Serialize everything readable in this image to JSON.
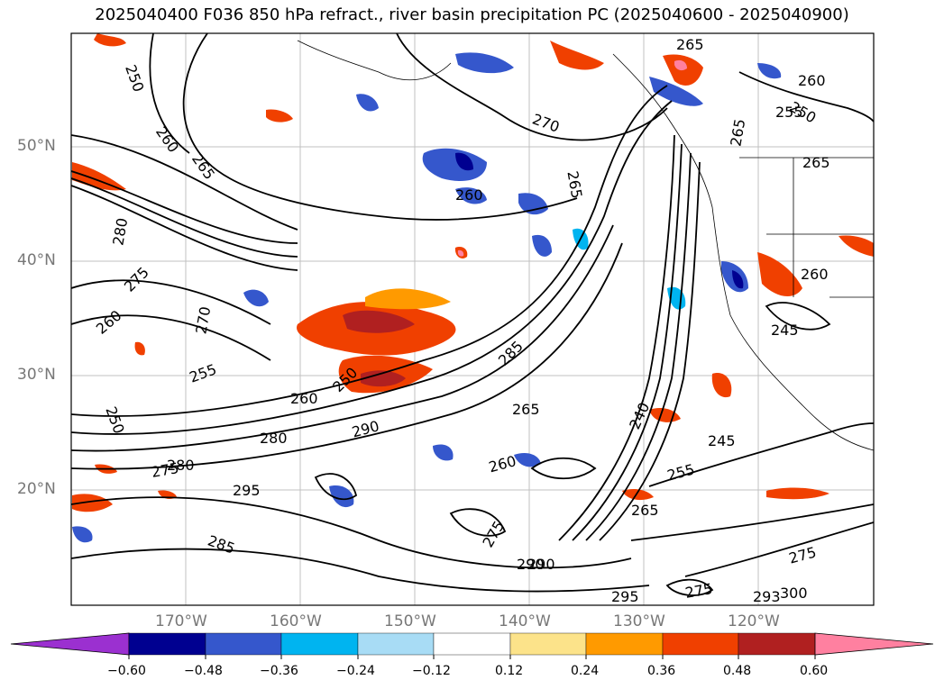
{
  "title": "2025040400 F036 850 hPa refract., river basin precipitation PC (2025040600 - 2025040900)",
  "map": {
    "lat_labels": [
      "50°N",
      "40°N",
      "30°N",
      "20°N"
    ],
    "lon_labels": [
      "170°W",
      "160°W",
      "150°W",
      "140°W",
      "130°W",
      "120°W"
    ],
    "extent": {
      "lon_min": -179.5,
      "lon_max": -109.5,
      "lat_min": 10,
      "lat_max": 60
    }
  },
  "contour_labels": [
    "250",
    "260",
    "265",
    "270",
    "280",
    "275",
    "260",
    "270",
    "255",
    "250",
    "260",
    "250",
    "280",
    "290",
    "295",
    "285",
    "265",
    "260",
    "275",
    "280",
    "275",
    "285",
    "290",
    "240",
    "265",
    "260",
    "245",
    "255",
    "265",
    "275",
    "290",
    "295",
    "275",
    "265",
    "260",
    "265",
    "250",
    "265",
    "245",
    "300",
    "293",
    "260",
    "255"
  ],
  "colorbar": {
    "ticks": [
      "−0.60",
      "−0.48",
      "−0.36",
      "−0.24",
      "−0.12",
      "0.12",
      "0.24",
      "0.36",
      "0.48",
      "0.60"
    ],
    "colors": [
      "#9b30d0",
      "#000090",
      "#3557cc",
      "#00b4f0",
      "#a8dcf5",
      "#ffffff",
      "#fce38a",
      "#ff9a00",
      "#f04000",
      "#b02020",
      "#ff80a0"
    ]
  }
}
